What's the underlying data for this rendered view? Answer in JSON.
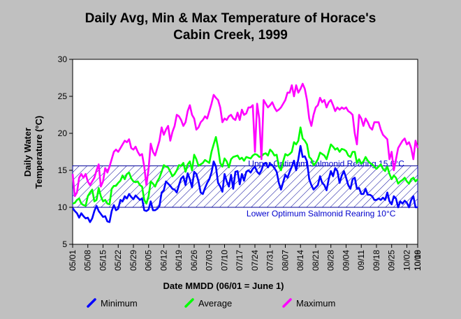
{
  "chart_data": {
    "type": "line",
    "title_lines": [
      "Daily Avg, Min & Max Temperature of Horace's",
      "Cabin Creek, 1999"
    ],
    "xlabel": "Date MMDD (06/01 = June 1)",
    "ylabel_lines": [
      "Daily Water",
      "Temperature (°C)"
    ],
    "ylim": [
      5,
      30
    ],
    "yticks": [
      "5",
      "10",
      "15",
      "20",
      "25",
      "30"
    ],
    "xticks": [
      "05/01",
      "05/08",
      "05/15",
      "05/22",
      "05/29",
      "06/05",
      "06/12",
      "06/19",
      "06/26",
      "07/03",
      "07/10",
      "07/17",
      "07/24",
      "07/31",
      "08/07",
      "08/14",
      "08/21",
      "08/28",
      "09/04",
      "09/11",
      "09/18",
      "09/25",
      "10/02",
      "10/09",
      "10/16"
    ],
    "grid": false,
    "legend_position": "bottom",
    "band": {
      "lower": 10,
      "upper": 15.6,
      "upper_label": "Upper Optimum Salmonid Rearing 15.6°C",
      "lower_label": "Lower Optimum Salmonid Rearing 10°C",
      "color": "#000099"
    },
    "series": [
      {
        "name": "Minimum",
        "color": "#0000ff",
        "values": [
          9.9,
          9.5,
          9.2,
          8.6,
          9.2,
          8.8,
          8.5,
          8.6,
          8.0,
          8.5,
          9.5,
          10.2,
          9.5,
          9.1,
          8.7,
          8.8,
          8.1,
          8.0,
          9.5,
          10.3,
          9.6,
          9.8,
          11.0,
          10.8,
          11.5,
          11.2,
          11.8,
          11.4,
          11.1,
          11.6,
          11.3,
          11.0,
          11.2,
          9.6,
          9.5,
          9.7,
          10.8,
          9.6,
          9.6,
          9.8,
          10.2,
          12.0,
          12.3,
          13.5,
          13.2,
          12.9,
          12.5,
          12.4,
          12.0,
          13.0,
          13.9,
          14.2,
          13.0,
          14.6,
          13.8,
          12.7,
          14.8,
          14.5,
          13.5,
          12.0,
          11.8,
          12.6,
          13.3,
          13.8,
          14.7,
          16.2,
          15.5,
          13.3,
          12.8,
          12.1,
          14.5,
          13.5,
          12.8,
          14.4,
          12.5,
          14.8,
          14.9,
          13.1,
          14.5,
          13.6,
          14.8,
          15.0,
          14.7,
          15.2,
          15.5,
          14.8,
          14.5,
          15.0,
          15.9,
          16.0,
          15.4,
          15.9,
          15.7,
          15.3,
          14.8,
          13.3,
          12.4,
          13.4,
          14.4,
          14.0,
          14.8,
          15.5,
          16.3,
          15.0,
          16.5,
          18.3,
          16.8,
          16.9,
          16.2,
          13.8,
          13.0,
          12.4,
          12.7,
          13.0,
          14.2,
          13.3,
          13.0,
          12.3,
          13.8,
          14.9,
          14.2,
          15.3,
          14.9,
          13.3,
          14.3,
          14.9,
          14.0,
          13.0,
          12.5,
          13.8,
          14.0,
          12.5,
          12.6,
          11.8,
          11.8,
          12.5,
          11.7,
          11.7,
          11.5,
          11.0,
          11.0,
          11.2,
          11.0,
          11.3,
          11.0,
          12.0,
          10.8,
          10.4,
          11.5,
          11.2,
          10.0,
          10.8,
          10.5,
          10.9,
          10.6,
          10.0,
          11.0,
          11.5,
          10.0,
          10.0
        ]
      },
      {
        "name": "Average",
        "color": "#00ff00",
        "values": [
          10.5,
          10.6,
          11.0,
          11.2,
          10.5,
          10.3,
          10.2,
          11.5,
          12.0,
          12.4,
          10.8,
          11.0,
          12.6,
          11.5,
          10.8,
          11.0,
          10.5,
          10.4,
          12.5,
          12.9,
          12.9,
          13.3,
          13.6,
          14.3,
          13.8,
          14.5,
          14.7,
          13.9,
          13.5,
          13.4,
          13.5,
          13.0,
          12.8,
          11.0,
          10.5,
          11.5,
          13.5,
          13.2,
          12.8,
          13.5,
          14.0,
          14.8,
          15.7,
          15.5,
          15.4,
          14.8,
          14.2,
          14.5,
          15.0,
          15.7,
          15.6,
          16.0,
          14.8,
          15.8,
          16.2,
          15.0,
          17.1,
          16.5,
          15.6,
          15.8,
          16.0,
          16.4,
          16.2,
          16.0,
          17.5,
          18.5,
          19.5,
          18.0,
          16.0,
          15.5,
          16.6,
          16.2,
          15.4,
          16.5,
          16.8,
          16.9,
          17.0,
          16.5,
          16.7,
          16.3,
          16.8,
          16.7,
          16.6,
          17.0,
          17.2,
          17.1,
          16.8,
          16.9,
          17.2,
          17.3,
          17.0,
          17.8,
          17.5,
          17.0,
          17.1,
          15.5,
          15.0,
          16.2,
          17.2,
          17.0,
          17.2,
          17.5,
          18.8,
          18.5,
          19.0,
          20.8,
          19.3,
          19.0,
          18.5,
          16.8,
          16.5,
          15.7,
          16.0,
          16.5,
          17.4,
          17.2,
          17.0,
          16.5,
          17.5,
          18.5,
          18.2,
          17.8,
          18.0,
          17.5,
          17.9,
          17.8,
          17.6,
          17.0,
          16.8,
          17.5,
          17.5,
          16.0,
          16.5,
          15.9,
          16.2,
          16.8,
          16.3,
          16.0,
          15.8,
          15.5,
          15.2,
          15.5,
          15.8,
          15.2,
          14.9,
          15.5,
          14.5,
          13.8,
          14.3,
          14.0,
          13.2,
          13.5,
          13.7,
          14.0,
          13.5,
          13.2,
          13.8,
          14.0,
          13.5,
          13.8
        ]
      },
      {
        "name": "Maximum",
        "color": "#ff00ff",
        "values": [
          14.5,
          11.5,
          12.0,
          14.0,
          14.5,
          14.0,
          14.5,
          13.5,
          13.0,
          13.5,
          14.0,
          15.0,
          15.8,
          12.8,
          13.5,
          15.3,
          14.7,
          15.5,
          16.5,
          17.5,
          17.8,
          17.5,
          18.0,
          18.5,
          19.0,
          18.8,
          19.2,
          18.0,
          17.8,
          18.2,
          17.5,
          17.0,
          17.2,
          15.5,
          13.0,
          15.2,
          18.6,
          17.5,
          17.0,
          18.0,
          19.0,
          20.8,
          19.8,
          20.5,
          21.0,
          19.0,
          20.2,
          21.0,
          22.5,
          22.3,
          21.8,
          21.0,
          21.5,
          23.0,
          23.8,
          22.5,
          22.0,
          20.5,
          20.8,
          21.5,
          21.8,
          22.3,
          22.0,
          23.0,
          24.0,
          25.2,
          24.8,
          24.5,
          23.5,
          21.5,
          22.0,
          21.8,
          22.3,
          22.5,
          22.0,
          21.8,
          22.8,
          21.8,
          23.2,
          22.5,
          22.7,
          23.5,
          23.5,
          23.8,
          17.5,
          24.0,
          22.0,
          16.5,
          24.5,
          24.0,
          23.5,
          23.8,
          24.2,
          23.5,
          23.0,
          23.2,
          23.5,
          24.0,
          24.5,
          25.5,
          25.5,
          26.5,
          25.0,
          26.5,
          25.5,
          26.0,
          26.7,
          26.0,
          24.5,
          22.0,
          21.0,
          22.5,
          23.5,
          23.8,
          24.8,
          24.2,
          24.5,
          23.5,
          24.2,
          24.5,
          23.8,
          23.0,
          23.5,
          23.2,
          23.5,
          23.3,
          23.5,
          23.0,
          22.8,
          22.5,
          20.0,
          18.5,
          22.5,
          22.0,
          21.0,
          22.0,
          21.5,
          20.8,
          20.5,
          21.5,
          21.5,
          21.5,
          20.5,
          19.8,
          19.5,
          19.2,
          16.5,
          17.5,
          15.0,
          16.5,
          18.0,
          18.5,
          19.0,
          19.3,
          18.5,
          18.8,
          18.0,
          16.5,
          19.0,
          18.0
        ]
      }
    ]
  }
}
